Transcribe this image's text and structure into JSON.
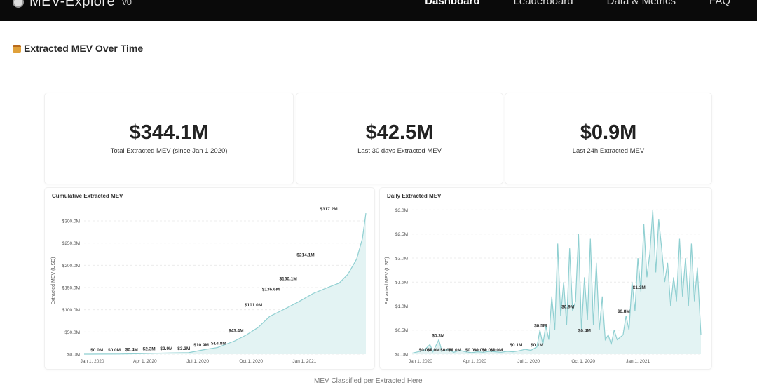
{
  "header": {
    "app_name": "MEV-Explore",
    "version": "v0",
    "nav": [
      "Dashboard",
      "Leaderboard",
      "Data & Metrics",
      "FAQ"
    ]
  },
  "section": {
    "title": "Extracted MEV Over Time"
  },
  "stats": [
    {
      "value": "$344.1M",
      "label": "Total Extracted MEV (since Jan 1 2020)"
    },
    {
      "value": "$42.5M",
      "label": "Last 30 days Extracted MEV"
    },
    {
      "value": "$0.9M",
      "label": "Last 24h Extracted MEV"
    }
  ],
  "footer_note": "MEV Classified per Extracted Here",
  "colors": {
    "area_fill": "#e3f3f3",
    "line": "#8fcfd1",
    "topbar": "#0a0a0a"
  },
  "chart_data": [
    {
      "type": "area",
      "title": "Cumulative Extracted MEV",
      "ylabel": "Extracted MEV (USD)",
      "ylim": [
        0,
        330
      ],
      "y_ticks": [
        0,
        50,
        100,
        150,
        200,
        250,
        300
      ],
      "y_tick_labels": [
        "$0.0M",
        "$50.0M",
        "$100.0M",
        "$150.0M",
        "$200.0M",
        "$250.0M",
        "$300.0M"
      ],
      "x_tick_labels": [
        "Jan 1, 2020",
        "Apr 1, 2020",
        "Jul 1, 2020",
        "Oct 1, 2020",
        "Jan 1, 2021"
      ],
      "x_tick_days": [
        14,
        105,
        196,
        288,
        380
      ],
      "xlim_days": [
        0,
        486
      ],
      "grid": true,
      "series": [
        {
          "values": [
            [
              0,
              0
            ],
            [
              30,
              0.1
            ],
            [
              60,
              0.3
            ],
            [
              90,
              1.0
            ],
            [
              120,
              2.0
            ],
            [
              150,
              2.9
            ],
            [
              180,
              3.3
            ],
            [
              210,
              10.9
            ],
            [
              230,
              14.8
            ],
            [
              260,
              30
            ],
            [
              280,
              43.4
            ],
            [
              300,
              60
            ],
            [
              320,
              85
            ],
            [
              345,
              101
            ],
            [
              370,
              118
            ],
            [
              395,
              136.6
            ],
            [
              420,
              150
            ],
            [
              440,
              160.1
            ],
            [
              455,
              180
            ],
            [
              470,
              214.1
            ],
            [
              480,
              260
            ],
            [
              486,
              317.2
            ]
          ]
        }
      ],
      "annotations": [
        {
          "day": 22,
          "value": 0.0,
          "label": "$0.0M"
        },
        {
          "day": 52,
          "value": 0.0,
          "label": "$0.0M"
        },
        {
          "day": 82,
          "value": 0.4,
          "label": "$0.4M"
        },
        {
          "day": 112,
          "value": 2.3,
          "label": "$2.3M"
        },
        {
          "day": 142,
          "value": 2.9,
          "label": "$2.9M"
        },
        {
          "day": 172,
          "value": 3.3,
          "label": "$3.3M"
        },
        {
          "day": 202,
          "value": 10.9,
          "label": "$10.9M"
        },
        {
          "day": 232,
          "value": 14.8,
          "label": "$14.8M"
        },
        {
          "day": 262,
          "value": 43.4,
          "label": "$43.4M"
        },
        {
          "day": 292,
          "value": 101.0,
          "label": "$101.0M"
        },
        {
          "day": 322,
          "value": 136.6,
          "label": "$136.6M"
        },
        {
          "day": 352,
          "value": 160.1,
          "label": "$160.1M"
        },
        {
          "day": 382,
          "value": 214.1,
          "label": "$214.1M"
        },
        {
          "day": 422,
          "value": 317.2,
          "label": "$317.2M"
        }
      ]
    },
    {
      "type": "area",
      "title": "Daily Extracted MEV",
      "ylabel": "Extracted MEV (USD)",
      "ylim": [
        0,
        3.05
      ],
      "y_ticks": [
        0,
        0.5,
        1.0,
        1.5,
        2.0,
        2.5,
        3.0
      ],
      "y_tick_labels": [
        "$0.0M",
        "$0.5M",
        "$1.0M",
        "$1.5M",
        "$2.0M",
        "$2.5M",
        "$3.0M"
      ],
      "x_tick_labels": [
        "Jan 1, 2020",
        "Apr 1, 2020",
        "Jul 1, 2020",
        "Oct 1, 2020",
        "Jan 1, 2021"
      ],
      "x_tick_days": [
        14,
        105,
        196,
        288,
        380
      ],
      "xlim_days": [
        0,
        486
      ],
      "grid": true,
      "series": [
        {
          "values": [
            [
              0,
              0.02
            ],
            [
              10,
              0.05
            ],
            [
              20,
              0.08
            ],
            [
              30,
              0.2
            ],
            [
              35,
              0.05
            ],
            [
              45,
              0.3
            ],
            [
              50,
              0.06
            ],
            [
              60,
              0.1
            ],
            [
              70,
              0.04
            ],
            [
              80,
              0.08
            ],
            [
              90,
              0.05
            ],
            [
              100,
              0.03
            ],
            [
              110,
              0.05
            ],
            [
              120,
              0.04
            ],
            [
              130,
              0.06
            ],
            [
              140,
              0.05
            ],
            [
              150,
              0.04
            ],
            [
              160,
              0.06
            ],
            [
              170,
              0.05
            ],
            [
              180,
              0.07
            ],
            [
              190,
              0.1
            ],
            [
              200,
              0.08
            ],
            [
              210,
              0.15
            ],
            [
              215,
              0.5
            ],
            [
              220,
              0.2
            ],
            [
              225,
              0.6
            ],
            [
              230,
              0.3
            ],
            [
              235,
              1.2
            ],
            [
              240,
              0.5
            ],
            [
              245,
              2.3
            ],
            [
              250,
              0.8
            ],
            [
              255,
              1.5
            ],
            [
              260,
              0.6
            ],
            [
              265,
              2.2
            ],
            [
              270,
              0.9
            ],
            [
              275,
              1.1
            ],
            [
              280,
              2.5
            ],
            [
              285,
              0.5
            ],
            [
              290,
              1.6
            ],
            [
              295,
              0.7
            ],
            [
              300,
              2.4
            ],
            [
              305,
              0.6
            ],
            [
              310,
              1.9
            ],
            [
              315,
              0.5
            ],
            [
              320,
              1.2
            ],
            [
              325,
              0.3
            ],
            [
              330,
              0.4
            ],
            [
              335,
              0.2
            ],
            [
              340,
              0.5
            ],
            [
              345,
              0.3
            ],
            [
              350,
              0.35
            ],
            [
              355,
              0.4
            ],
            [
              360,
              0.8
            ],
            [
              365,
              0.5
            ],
            [
              370,
              1.5
            ],
            [
              375,
              0.9
            ],
            [
              380,
              2.0
            ],
            [
              385,
              1.3
            ],
            [
              390,
              2.7
            ],
            [
              395,
              1.6
            ],
            [
              400,
              2.1
            ],
            [
              405,
              3.0
            ],
            [
              410,
              1.7
            ],
            [
              415,
              2.8
            ],
            [
              420,
              2.2
            ],
            [
              425,
              1.5
            ],
            [
              430,
              1.9
            ],
            [
              435,
              1.0
            ],
            [
              440,
              1.6
            ],
            [
              445,
              1.1
            ],
            [
              450,
              2.4
            ],
            [
              455,
              1.2
            ],
            [
              460,
              2.0
            ],
            [
              465,
              1.0
            ],
            [
              470,
              2.3
            ],
            [
              475,
              1.1
            ],
            [
              480,
              1.8
            ],
            [
              486,
              0.4
            ]
          ]
        }
      ],
      "annotations": [
        {
          "day": 22,
          "value": 0.0,
          "label": "$0.0M"
        },
        {
          "day": 36,
          "value": 0.0,
          "label": "$0.0M"
        },
        {
          "day": 44,
          "value": 0.3,
          "label": "$0.3M"
        },
        {
          "day": 58,
          "value": 0.0,
          "label": "$0.0M"
        },
        {
          "day": 72,
          "value": 0.0,
          "label": "$0.0M"
        },
        {
          "day": 100,
          "value": 0.0,
          "label": "$0.0M"
        },
        {
          "day": 114,
          "value": 0.0,
          "label": "$0.0M"
        },
        {
          "day": 128,
          "value": 0.0,
          "label": "$0.0M"
        },
        {
          "day": 142,
          "value": 0.0,
          "label": "$0.0M"
        },
        {
          "day": 175,
          "value": 0.1,
          "label": "$0.1M"
        },
        {
          "day": 210,
          "value": 0.1,
          "label": "$0.1M"
        },
        {
          "day": 216,
          "value": 0.5,
          "label": "$0.5M"
        },
        {
          "day": 262,
          "value": 0.9,
          "label": "$0.9M"
        },
        {
          "day": 290,
          "value": 0.4,
          "label": "$0.4M"
        },
        {
          "day": 356,
          "value": 0.8,
          "label": "$0.8M"
        },
        {
          "day": 382,
          "value": 1.3,
          "label": "$1.3M"
        }
      ]
    }
  ]
}
